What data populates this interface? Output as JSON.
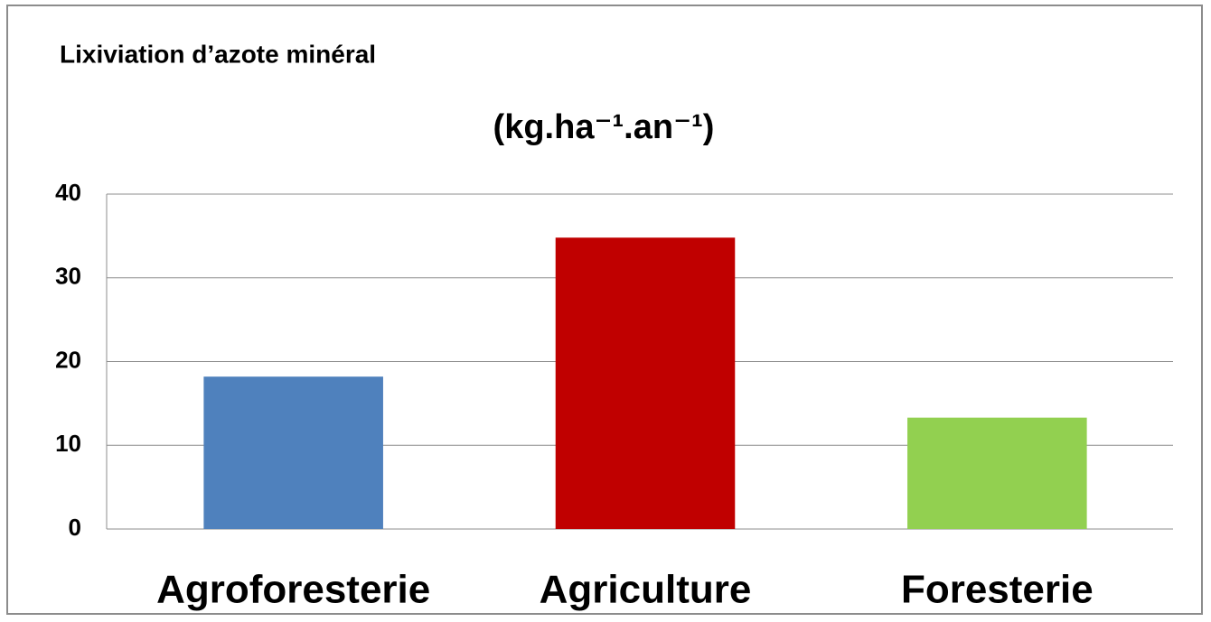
{
  "chart_data": {
    "type": "bar",
    "title": "Lixiviation d’azote minéral",
    "subtitle": "(kg.ha⁻¹.an⁻¹)",
    "categories": [
      "Agroforesterie",
      "Agriculture",
      "Foresterie"
    ],
    "values": [
      18.2,
      34.8,
      13.3
    ],
    "colors": [
      "#4f81bd",
      "#c00000",
      "#92d050"
    ],
    "ylim": [
      0,
      40
    ],
    "yticks": [
      0,
      10,
      20,
      30,
      40
    ],
    "grid": true
  }
}
